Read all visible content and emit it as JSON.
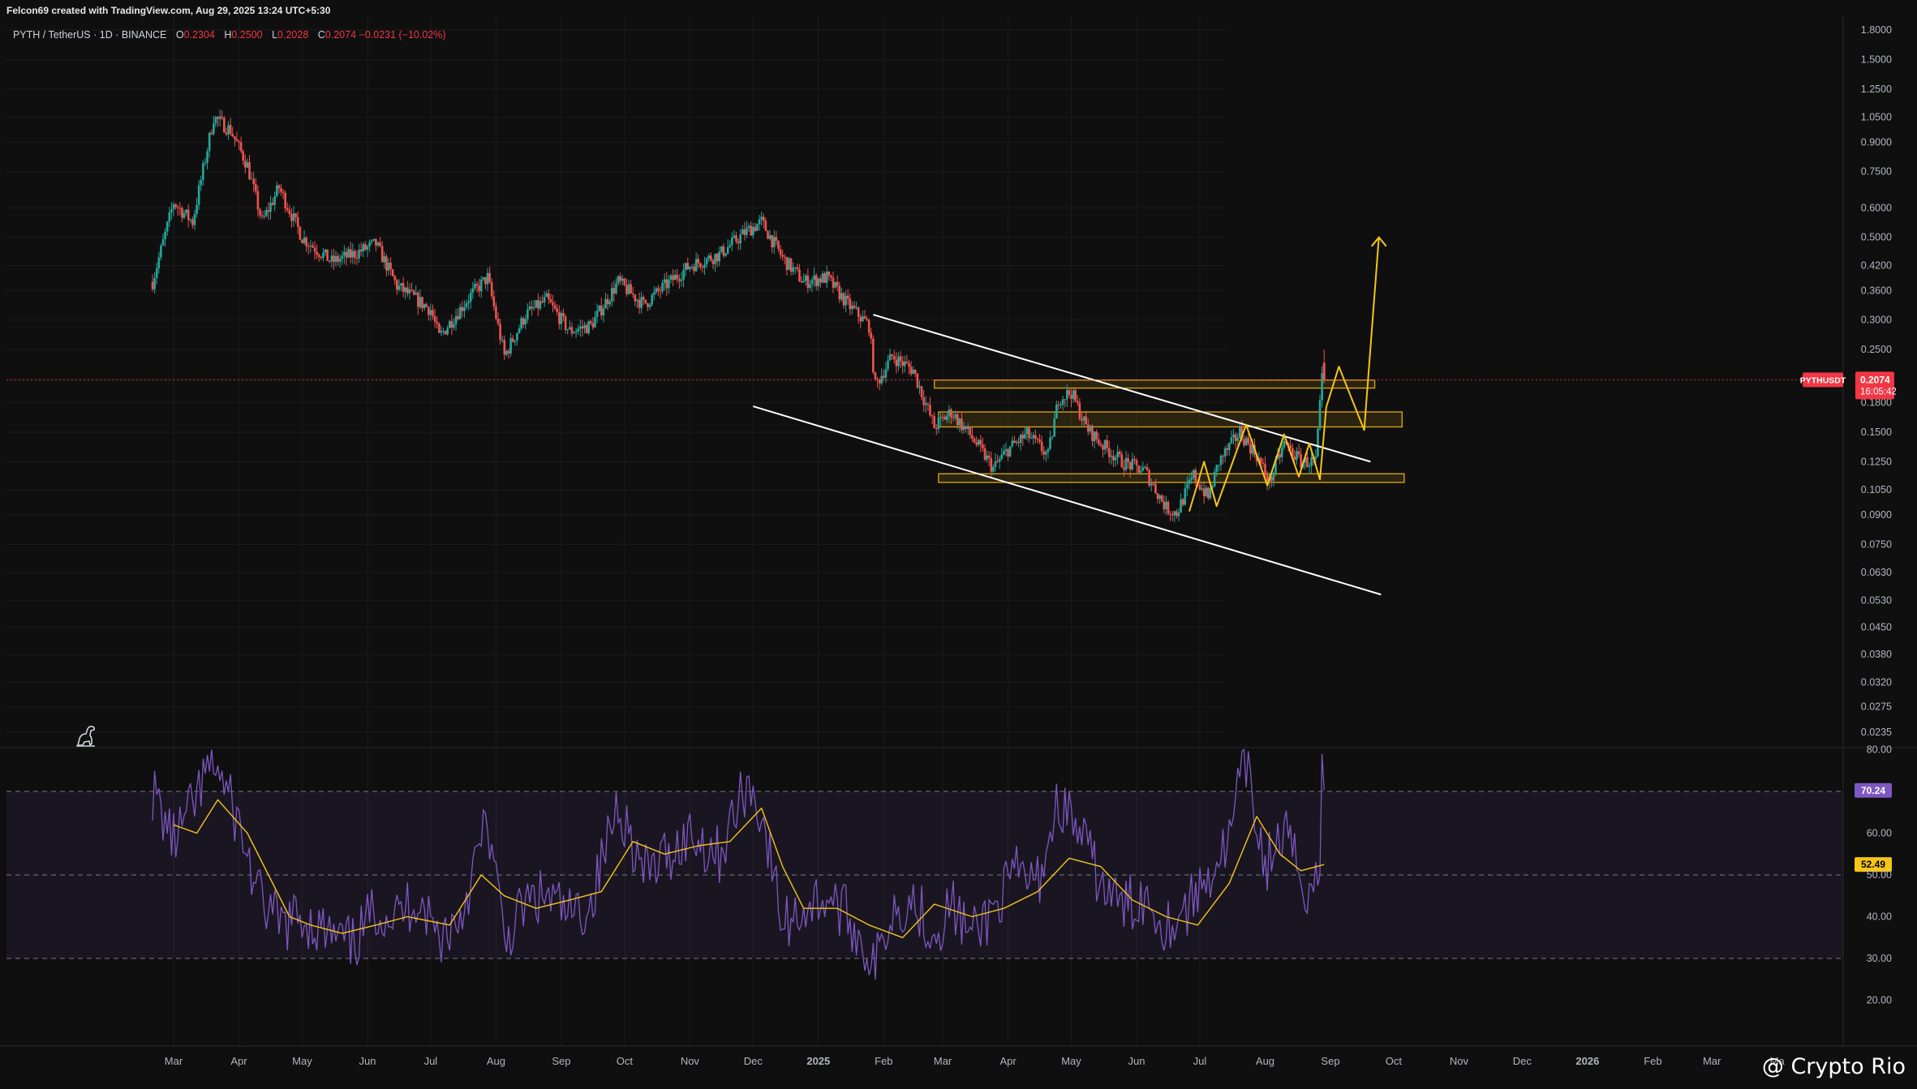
{
  "header": {
    "credit": "Felcon69 created with TradingView.com, Aug 29, 2025 13:24 UTC+5:30",
    "symbol": "PYTH / TetherUS · 1D · BINANCE",
    "ohlc": {
      "o_label": "O",
      "o": "0.2304",
      "h_label": "H",
      "h": "0.2500",
      "l_label": "L",
      "l": "0.2028",
      "c_label": "C",
      "c": "0.2074",
      "change": "−0.0231 (−10.02%)"
    }
  },
  "price_tag": {
    "symbol": "PYTHUSDT",
    "price": "0.2074",
    "countdown": "16:05:42"
  },
  "watermark": "@ Crypto Rio",
  "colors": {
    "background": "#0f0f0f",
    "up": "#26a69a",
    "down": "#ef5350",
    "trendline": "#ffffff",
    "zone": "#d4a017",
    "projection": "#f5c518",
    "rsi": "#7e57c2",
    "rsi_ma": "#f5c518",
    "price_tag": "#f23645"
  },
  "chart_data": [
    {
      "type": "candlestick",
      "scale": "log",
      "price_axis_ticks": [
        "1.8000",
        "1.5000",
        "1.2500",
        "1.0500",
        "0.9000",
        "0.7500",
        "0.6000",
        "0.5000",
        "0.4200",
        "0.3600",
        "0.3000",
        "0.2500",
        "0.2074",
        "0.1800",
        "0.1500",
        "0.1250",
        "0.1050",
        "0.0900",
        "0.0750",
        "0.0630",
        "0.0530",
        "0.0450",
        "0.0380",
        "0.0320",
        "0.0275",
        "0.0235"
      ],
      "time_axis_labels": [
        "Mar",
        "Apr",
        "May",
        "Jun",
        "Jul",
        "Aug",
        "Sep",
        "Oct",
        "Nov",
        "Dec",
        "2025",
        "Feb",
        "Mar",
        "Apr",
        "May",
        "Jun",
        "Jul",
        "Aug",
        "Sep",
        "Oct",
        "Nov",
        "Dec",
        "2026",
        "Feb",
        "Mar",
        "Ma"
      ],
      "close_path": [
        [
          "2024-02-20",
          0.38
        ],
        [
          "2024-03-01",
          0.62
        ],
        [
          "2024-03-10",
          0.55
        ],
        [
          "2024-03-20",
          1.05
        ],
        [
          "2024-03-28",
          0.97
        ],
        [
          "2024-04-05",
          0.78
        ],
        [
          "2024-04-12",
          0.55
        ],
        [
          "2024-04-20",
          0.68
        ],
        [
          "2024-05-01",
          0.5
        ],
        [
          "2024-05-15",
          0.43
        ],
        [
          "2024-05-25",
          0.45
        ],
        [
          "2024-06-05",
          0.48
        ],
        [
          "2024-06-15",
          0.37
        ],
        [
          "2024-07-01",
          0.32
        ],
        [
          "2024-07-05",
          0.27
        ],
        [
          "2024-07-20",
          0.35
        ],
        [
          "2024-07-28",
          0.39
        ],
        [
          "2024-08-05",
          0.24
        ],
        [
          "2024-08-15",
          0.31
        ],
        [
          "2024-08-25",
          0.34
        ],
        [
          "2024-09-05",
          0.28
        ],
        [
          "2024-09-15",
          0.29
        ],
        [
          "2024-09-28",
          0.38
        ],
        [
          "2024-10-10",
          0.33
        ],
        [
          "2024-10-20",
          0.37
        ],
        [
          "2024-11-01",
          0.42
        ],
        [
          "2024-11-15",
          0.45
        ],
        [
          "2024-11-28",
          0.52
        ],
        [
          "2024-12-05",
          0.55
        ],
        [
          "2024-12-15",
          0.44
        ],
        [
          "2024-12-25",
          0.38
        ],
        [
          "2025-01-05",
          0.39
        ],
        [
          "2025-01-15",
          0.33
        ],
        [
          "2025-01-25",
          0.29
        ],
        [
          "2025-01-28",
          0.2
        ],
        [
          "2025-02-05",
          0.24
        ],
        [
          "2025-02-15",
          0.22
        ],
        [
          "2025-02-25",
          0.155
        ],
        [
          "2025-03-05",
          0.17
        ],
        [
          "2025-03-15",
          0.145
        ],
        [
          "2025-03-25",
          0.12
        ],
        [
          "2025-04-01",
          0.135
        ],
        [
          "2025-04-10",
          0.148
        ],
        [
          "2025-04-20",
          0.13
        ],
        [
          "2025-04-25",
          0.185
        ],
        [
          "2025-05-01",
          0.192
        ],
        [
          "2025-05-08",
          0.155
        ],
        [
          "2025-05-15",
          0.14
        ],
        [
          "2025-05-25",
          0.125
        ],
        [
          "2025-06-05",
          0.118
        ],
        [
          "2025-06-15",
          0.094
        ],
        [
          "2025-06-20",
          0.091
        ],
        [
          "2025-06-28",
          0.115
        ],
        [
          "2025-07-05",
          0.1
        ],
        [
          "2025-07-10",
          0.125
        ],
        [
          "2025-07-20",
          0.15
        ],
        [
          "2025-07-28",
          0.13
        ],
        [
          "2025-08-03",
          0.11
        ],
        [
          "2025-08-10",
          0.14
        ],
        [
          "2025-08-18",
          0.125
        ],
        [
          "2025-08-25",
          0.125
        ],
        [
          "2025-08-28",
          0.2074
        ]
      ],
      "last_candle": {
        "date": "2025-08-29",
        "open": 0.2304,
        "high": 0.25,
        "low": 0.2028,
        "close": 0.2074
      },
      "current_price": 0.2074,
      "trendlines": [
        {
          "name": "channel-upper",
          "from": [
            "2025-01-27",
            0.31
          ],
          "to": [
            "2025-09-20",
            0.125
          ]
        },
        {
          "name": "channel-lower",
          "from": [
            "2024-12-01",
            0.176
          ],
          "to": [
            "2025-09-25",
            0.055
          ]
        }
      ],
      "zones": [
        {
          "name": "zone-upper",
          "from": "2025-02-25",
          "to": "2025-09-22",
          "low": 0.197,
          "high": 0.207
        },
        {
          "name": "zone-middle",
          "from": "2025-02-27",
          "to": "2025-10-05",
          "low": 0.155,
          "high": 0.17
        },
        {
          "name": "zone-lower",
          "from": "2025-02-27",
          "to": "2025-10-06",
          "low": 0.11,
          "high": 0.116
        }
      ],
      "projection_path": [
        [
          "2025-06-26",
          0.092
        ],
        [
          "2025-07-03",
          0.125
        ],
        [
          "2025-07-09",
          0.095
        ],
        [
          "2025-07-23",
          0.157
        ],
        [
          "2025-08-02",
          0.108
        ],
        [
          "2025-08-10",
          0.148
        ],
        [
          "2025-08-17",
          0.114
        ],
        [
          "2025-08-22",
          0.14
        ],
        [
          "2025-08-27",
          0.112
        ],
        [
          "2025-08-30",
          0.175
        ],
        [
          "2025-09-05",
          0.225
        ],
        [
          "2025-09-17",
          0.152
        ],
        [
          "2025-09-24",
          0.5
        ]
      ]
    },
    {
      "type": "line",
      "name": "RSI",
      "axis_ticks": [
        "80.00",
        "70.24",
        "60.00",
        "52.49",
        "50.00",
        "40.00",
        "30.00",
        "20.00"
      ],
      "levels": {
        "overbought": 70,
        "middle": 50,
        "oversold": 30
      },
      "last_values": {
        "rsi": 70.24,
        "rsi_ma": 52.49
      },
      "rsi_path": [
        [
          "2024-02-20",
          70
        ],
        [
          "2024-03-01",
          58
        ],
        [
          "2024-03-10",
          66
        ],
        [
          "2024-03-20",
          78
        ],
        [
          "2024-04-01",
          62
        ],
        [
          "2024-04-10",
          45
        ],
        [
          "2024-04-20",
          38
        ],
        [
          "2024-05-01",
          40
        ],
        [
          "2024-05-15",
          35
        ],
        [
          "2024-05-25",
          33
        ],
        [
          "2024-06-05",
          42
        ],
        [
          "2024-06-15",
          40
        ],
        [
          "2024-06-25",
          45
        ],
        [
          "2024-07-05",
          35
        ],
        [
          "2024-07-15",
          40
        ],
        [
          "2024-07-28",
          63
        ],
        [
          "2024-08-05",
          34
        ],
        [
          "2024-08-15",
          43
        ],
        [
          "2024-08-25",
          45
        ],
        [
          "2024-09-05",
          40
        ],
        [
          "2024-09-15",
          43
        ],
        [
          "2024-09-28",
          68
        ],
        [
          "2024-10-10",
          50
        ],
        [
          "2024-10-20",
          54
        ],
        [
          "2024-11-01",
          60
        ],
        [
          "2024-11-15",
          55
        ],
        [
          "2024-11-28",
          72
        ],
        [
          "2024-12-05",
          65
        ],
        [
          "2024-12-15",
          38
        ],
        [
          "2024-12-25",
          42
        ],
        [
          "2025-01-05",
          45
        ],
        [
          "2025-01-15",
          40
        ],
        [
          "2025-01-28",
          28
        ],
        [
          "2025-02-05",
          42
        ],
        [
          "2025-02-15",
          44
        ],
        [
          "2025-02-25",
          36
        ],
        [
          "2025-03-05",
          43
        ],
        [
          "2025-03-15",
          35
        ],
        [
          "2025-03-25",
          42
        ],
        [
          "2025-04-05",
          50
        ],
        [
          "2025-04-15",
          48
        ],
        [
          "2025-04-25",
          68
        ],
        [
          "2025-05-05",
          60
        ],
        [
          "2025-05-15",
          48
        ],
        [
          "2025-05-25",
          42
        ],
        [
          "2025-06-05",
          45
        ],
        [
          "2025-06-15",
          38
        ],
        [
          "2025-06-25",
          42
        ],
        [
          "2025-07-05",
          50
        ],
        [
          "2025-07-15",
          58
        ],
        [
          "2025-07-22",
          78
        ],
        [
          "2025-08-01",
          52
        ],
        [
          "2025-08-10",
          60
        ],
        [
          "2025-08-20",
          47
        ],
        [
          "2025-08-27",
          50
        ],
        [
          "2025-08-28",
          79
        ],
        [
          "2025-08-29",
          70.24
        ]
      ],
      "rsi_ma_path": [
        [
          "2024-03-01",
          62
        ],
        [
          "2024-03-12",
          60
        ],
        [
          "2024-03-22",
          68
        ],
        [
          "2024-04-05",
          60
        ],
        [
          "2024-04-15",
          50
        ],
        [
          "2024-04-25",
          40
        ],
        [
          "2024-05-05",
          38
        ],
        [
          "2024-05-20",
          36
        ],
        [
          "2024-06-05",
          38
        ],
        [
          "2024-06-20",
          40
        ],
        [
          "2024-07-10",
          38
        ],
        [
          "2024-07-25",
          50
        ],
        [
          "2024-08-05",
          45
        ],
        [
          "2024-08-20",
          42
        ],
        [
          "2024-09-05",
          44
        ],
        [
          "2024-09-20",
          46
        ],
        [
          "2024-10-05",
          58
        ],
        [
          "2024-10-20",
          55
        ],
        [
          "2024-11-05",
          57
        ],
        [
          "2024-11-20",
          58
        ],
        [
          "2024-12-05",
          66
        ],
        [
          "2024-12-15",
          52
        ],
        [
          "2024-12-25",
          42
        ],
        [
          "2025-01-10",
          42
        ],
        [
          "2025-01-25",
          38
        ],
        [
          "2025-02-10",
          35
        ],
        [
          "2025-02-25",
          43
        ],
        [
          "2025-03-15",
          40
        ],
        [
          "2025-03-30",
          42
        ],
        [
          "2025-04-15",
          46
        ],
        [
          "2025-04-30",
          54
        ],
        [
          "2025-05-15",
          52
        ],
        [
          "2025-05-30",
          44
        ],
        [
          "2025-06-15",
          40
        ],
        [
          "2025-06-30",
          38
        ],
        [
          "2025-07-15",
          48
        ],
        [
          "2025-07-28",
          64
        ],
        [
          "2025-08-08",
          55
        ],
        [
          "2025-08-18",
          51
        ],
        [
          "2025-08-29",
          52.49
        ]
      ]
    }
  ]
}
